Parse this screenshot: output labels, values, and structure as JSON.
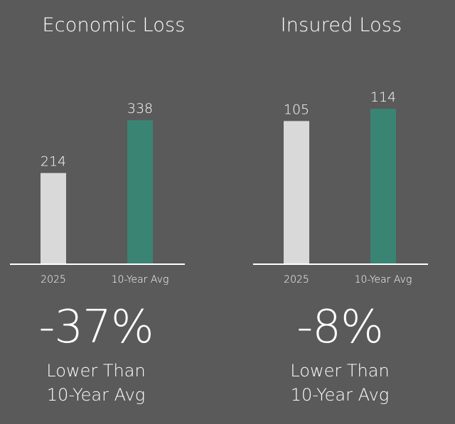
{
  "colors": {
    "background": "#5a5a5a",
    "bar_2025": "#d9d9d9",
    "bar_avg": "#3a8474",
    "text": "#ffffff"
  },
  "chart_data": [
    {
      "type": "bar",
      "title": "Economic Loss",
      "categories": [
        "2025",
        "10-Year Avg"
      ],
      "values": [
        214,
        338
      ],
      "data_labels": [
        "214",
        "338"
      ],
      "ylim": [
        0,
        400
      ],
      "grid": false,
      "summary": {
        "value": "-37%",
        "line1": "Lower Than",
        "line2": "10-Year Avg"
      }
    },
    {
      "type": "bar",
      "title": "Insured Loss",
      "categories": [
        "2025",
        "10-Year Avg"
      ],
      "values": [
        105,
        114
      ],
      "data_labels": [
        "105",
        "114"
      ],
      "ylim": [
        0,
        125
      ],
      "grid": false,
      "summary": {
        "value": "-8%",
        "line1": "Lower Than",
        "line2": "10-Year Avg"
      }
    }
  ]
}
